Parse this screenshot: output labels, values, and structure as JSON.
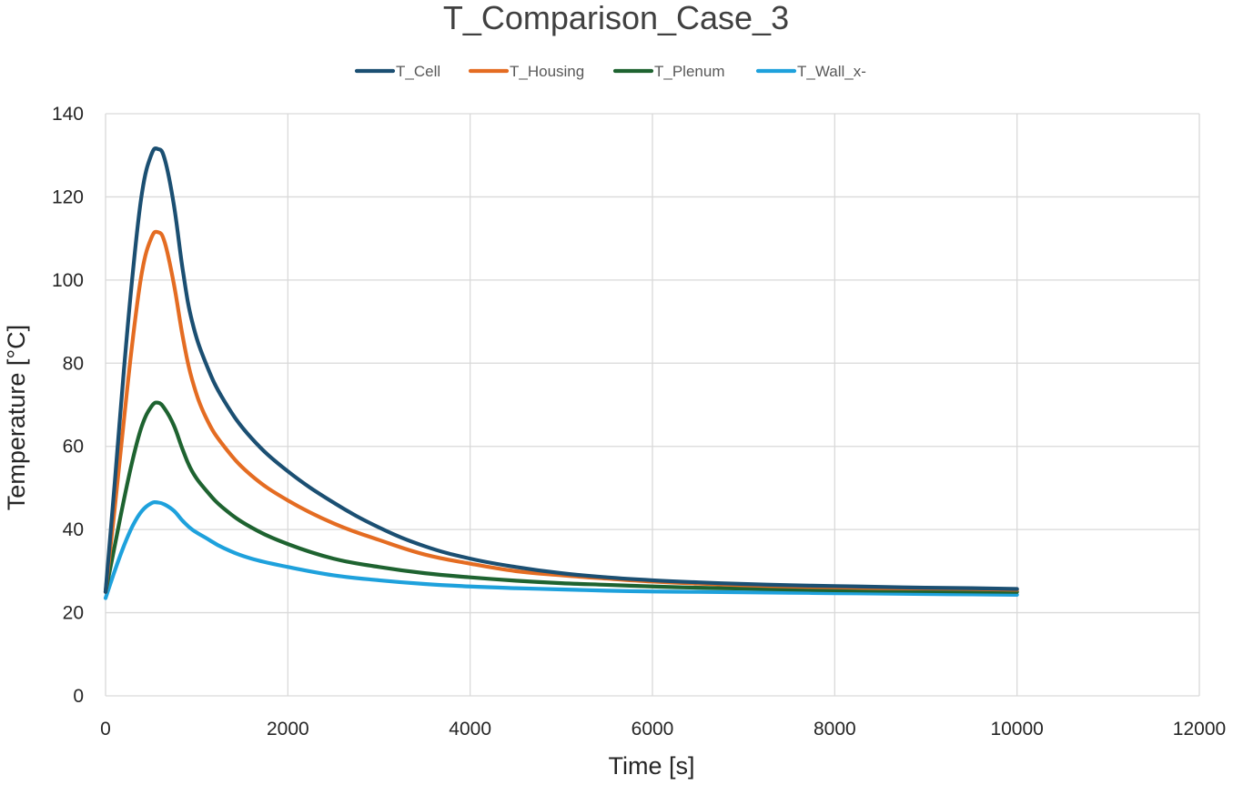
{
  "chart_data": {
    "type": "line",
    "title": "T_Comparison_Case_3",
    "xlabel": "Time [s]",
    "ylabel": "Temperature [°C]",
    "xlim": [
      0,
      12000
    ],
    "ylim": [
      0,
      140
    ],
    "x_ticks": [
      0,
      2000,
      4000,
      6000,
      8000,
      10000,
      12000
    ],
    "y_ticks": [
      0,
      20,
      40,
      60,
      80,
      100,
      120,
      140
    ],
    "x_tick_labels": [
      "0",
      "2000",
      "4000",
      "6000",
      "8000",
      "10000",
      "12000"
    ],
    "y_tick_labels": [
      "0",
      "20",
      "40",
      "60",
      "80",
      "100",
      "120",
      "140"
    ],
    "grid": true,
    "legend_position": "top-center",
    "x": [
      0,
      100,
      200,
      300,
      400,
      500,
      575,
      650,
      750,
      850,
      950,
      1100,
      1300,
      1600,
      2000,
      2500,
      3000,
      3500,
      4000,
      4500,
      5000,
      5500,
      6000,
      6500,
      7000,
      7500,
      8000,
      8500,
      9000,
      9500,
      10000
    ],
    "series": [
      {
        "name": "T_Cell",
        "color": "#1b4f72",
        "values": [
          25,
          51,
          78,
          102,
          121,
          130,
          131.5,
          129,
          118,
          102,
          90,
          80,
          71,
          62,
          54,
          46.5,
          40.5,
          36,
          33,
          31,
          29.5,
          28.5,
          27.8,
          27.3,
          26.9,
          26.6,
          26.4,
          26.2,
          26.0,
          25.9,
          25.7
        ]
      },
      {
        "name": "T_Housing",
        "color": "#e46c22",
        "values": [
          25,
          45,
          66,
          86,
          102,
          110,
          111.5,
          109,
          99,
          86,
          76,
          67,
          60,
          53,
          47,
          41.5,
          37.5,
          34,
          31.8,
          30,
          29,
          28.2,
          27.5,
          27,
          26.6,
          26.3,
          26.1,
          25.9,
          25.8,
          25.7,
          25.5
        ]
      },
      {
        "name": "T_Plenum",
        "color": "#1e6330",
        "values": [
          25,
          36,
          47,
          57,
          65,
          69.5,
          70.5,
          69,
          65,
          59,
          54,
          49.5,
          45,
          40.5,
          36.5,
          33,
          31,
          29.5,
          28.5,
          27.7,
          27.1,
          26.7,
          26.3,
          26.0,
          25.8,
          25.6,
          25.4,
          25.3,
          25.2,
          25.1,
          25.0
        ]
      },
      {
        "name": "T_Wall_x-",
        "color": "#1ea1dc",
        "values": [
          23.5,
          30,
          36,
          41,
          44.5,
          46.3,
          46.5,
          46,
          44.5,
          42,
          40,
          38,
          35.5,
          33,
          31,
          29,
          27.8,
          26.9,
          26.3,
          25.9,
          25.6,
          25.3,
          25.1,
          25.0,
          24.9,
          24.8,
          24.7,
          24.6,
          24.5,
          24.4,
          24.3
        ]
      }
    ]
  }
}
